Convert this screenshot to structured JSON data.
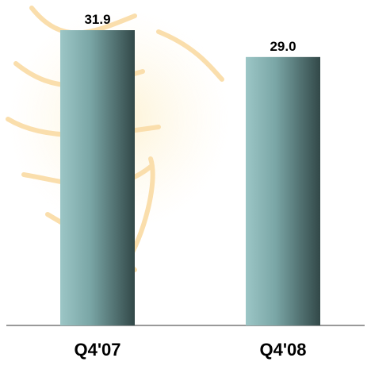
{
  "chart_data": {
    "type": "bar",
    "categories": [
      "Q4'07",
      "Q4'08"
    ],
    "values": [
      31.9,
      29
    ],
    "value_labels": [
      "31.9",
      "29.0"
    ]
  }
}
